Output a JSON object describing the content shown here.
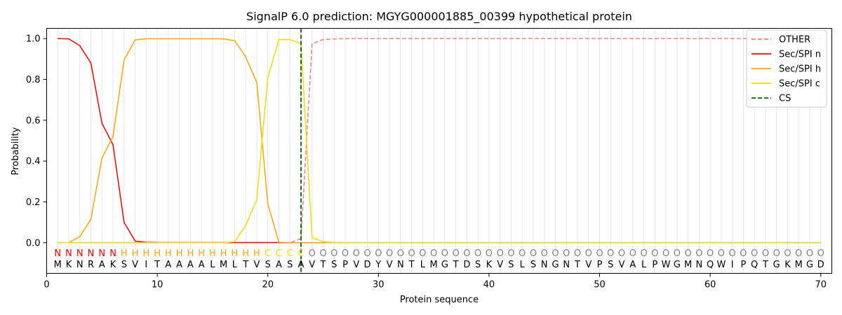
{
  "chart_data": {
    "type": "line",
    "title": "SignalP 6.0 prediction: MGYG000001885_00399 hypothetical protein",
    "xlabel": "Protein sequence",
    "ylabel": "Probability",
    "xlim": [
      0,
      71
    ],
    "ylim": [
      -0.15,
      1.05
    ],
    "xticks": [
      0,
      10,
      20,
      30,
      40,
      50,
      60,
      70
    ],
    "yticks": [
      0.0,
      0.2,
      0.4,
      0.6,
      0.8,
      1.0
    ],
    "ytick_labels": [
      "0.0",
      "0.2",
      "0.4",
      "0.6",
      "0.8",
      "1.0"
    ],
    "sequence": "MKNRAKSVITAAAALMLTVSASAVTSPVDYVNTLMGTDSKVSLSNGNTVPSVALPWGMNQWIPQTGKMGD",
    "labels": "NNNNNNHHHHHHHHHHHHHCCCCOOOOOOOOOOOOOOOOOOOOOOOOOOOOOOOOOOOOOOOOOOOOOOO",
    "label_colors": {
      "N": "#ff0000",
      "H": "#ffa500",
      "C": "#ffd700",
      "O": "#808080"
    },
    "x": [
      1,
      2,
      3,
      4,
      5,
      6,
      7,
      8,
      9,
      10,
      11,
      12,
      13,
      14,
      15,
      16,
      17,
      18,
      19,
      20,
      21,
      22,
      23,
      24,
      25,
      26,
      27,
      28,
      29,
      30,
      31,
      32,
      33,
      34,
      35,
      36,
      37,
      38,
      39,
      40,
      41,
      42,
      43,
      44,
      45,
      46,
      47,
      48,
      49,
      50,
      51,
      52,
      53,
      54,
      55,
      56,
      57,
      58,
      59,
      60,
      61,
      62,
      63,
      64,
      65,
      66,
      67,
      68,
      69,
      70
    ],
    "series": [
      {
        "name": "OTHER",
        "color": "#f08080",
        "dash": "dashed",
        "values": [
          0,
          0,
          0,
          0,
          0,
          0,
          0,
          0,
          0,
          0,
          0,
          0,
          0,
          0,
          0,
          0,
          0,
          0,
          0,
          0,
          0,
          0,
          0.02,
          0.975,
          0.995,
          0.998,
          0.999,
          1,
          1,
          1,
          1,
          1,
          1,
          1,
          1,
          1,
          1,
          1,
          1,
          1,
          1,
          1,
          1,
          1,
          1,
          1,
          1,
          1,
          1,
          1,
          1,
          1,
          1,
          1,
          1,
          1,
          1,
          1,
          1,
          1,
          1,
          1,
          1,
          1,
          1,
          1,
          1,
          1,
          1,
          1
        ]
      },
      {
        "name": "Sec/SPI n",
        "color": "#ff0000",
        "dash": "solid",
        "values": [
          1.0,
          0.998,
          0.965,
          0.88,
          0.585,
          0.48,
          0.1,
          0.008,
          0.002,
          0.001,
          0.001,
          0.001,
          0.001,
          0.001,
          0.001,
          0.001,
          0.001,
          0.001,
          0.001,
          0.001,
          0.001,
          0,
          0,
          0,
          0,
          0,
          0,
          0,
          0,
          0,
          0,
          0,
          0,
          0,
          0,
          0,
          0,
          0,
          0,
          0,
          0,
          0,
          0,
          0,
          0,
          0,
          0,
          0,
          0,
          0,
          0,
          0,
          0,
          0,
          0,
          0,
          0,
          0,
          0,
          0,
          0,
          0,
          0,
          0,
          0,
          0,
          0,
          0,
          0,
          0
        ]
      },
      {
        "name": "Sec/SPI h",
        "color": "#ffa500",
        "dash": "solid",
        "values": [
          0,
          0,
          0.03,
          0.115,
          0.415,
          0.52,
          0.895,
          0.993,
          0.999,
          0.999,
          0.999,
          0.999,
          0.999,
          0.999,
          0.999,
          0.998,
          0.99,
          0.91,
          0.785,
          0.19,
          0.002,
          0,
          0,
          0,
          0,
          0,
          0,
          0,
          0,
          0,
          0,
          0,
          0,
          0,
          0,
          0,
          0,
          0,
          0,
          0,
          0,
          0,
          0,
          0,
          0,
          0,
          0,
          0,
          0,
          0,
          0,
          0,
          0,
          0,
          0,
          0,
          0,
          0,
          0,
          0,
          0,
          0,
          0,
          0,
          0,
          0,
          0,
          0,
          0,
          0
        ]
      },
      {
        "name": "Sec/SPI c",
        "color": "#ffd700",
        "dash": "solid",
        "values": [
          0,
          0,
          0,
          0,
          0,
          0,
          0,
          0,
          0,
          0,
          0,
          0,
          0,
          0,
          0,
          0,
          0.005,
          0.085,
          0.21,
          0.81,
          0.995,
          0.995,
          0.975,
          0.025,
          0.005,
          0.001,
          0,
          0,
          0,
          0,
          0,
          0,
          0,
          0,
          0,
          0,
          0,
          0,
          0,
          0,
          0,
          0,
          0,
          0,
          0,
          0,
          0,
          0,
          0,
          0,
          0,
          0,
          0,
          0,
          0,
          0,
          0,
          0,
          0,
          0,
          0,
          0,
          0,
          0,
          0,
          0,
          0,
          0,
          0,
          0
        ]
      }
    ],
    "cs_line": {
      "name": "CS",
      "x": 23,
      "color": "#006400",
      "dash": "dashed"
    },
    "legend": {
      "placement": "top-right"
    },
    "grid": "vertical lines at each residue"
  }
}
